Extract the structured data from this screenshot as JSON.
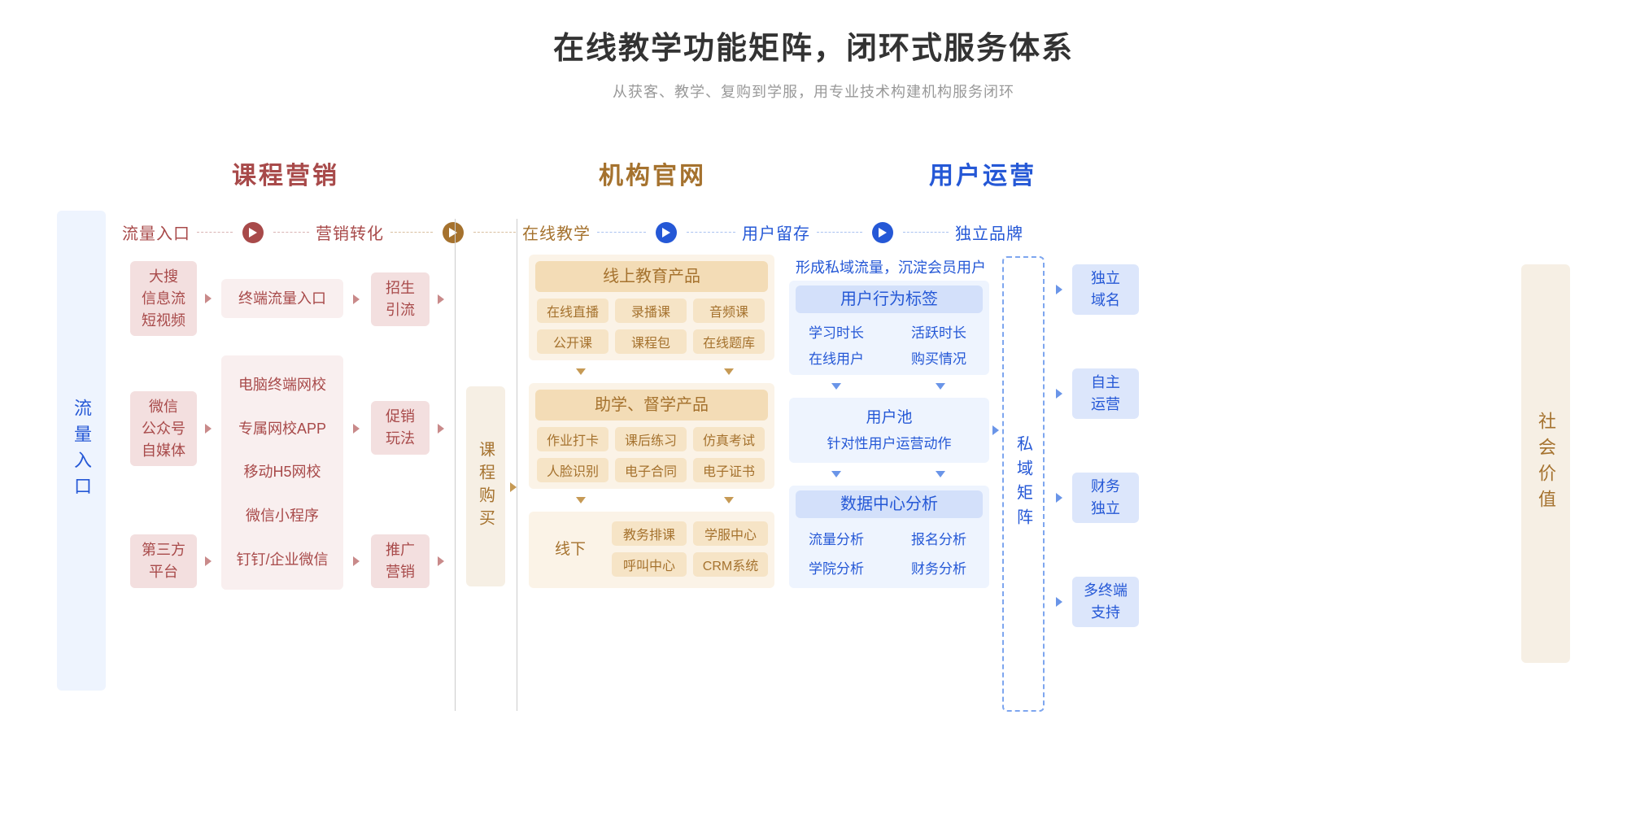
{
  "title": "在线教学功能矩阵，闭环式服务体系",
  "subtitle": "从获客、教学、复购到学服，用专业技术构建机构服务闭环",
  "colors": {
    "red": "#a84a4a",
    "brown": "#a5722e",
    "blue": "#2558d6",
    "red_bg": "#f9efef",
    "red_bg_dark": "#f3dfdf",
    "brown_bg": "#fbf3e7",
    "brown_bg_dark": "#f6e4c6",
    "brown_hdr": "#f3dcb6",
    "blue_bg": "#eef4fe",
    "blue_bg_dark": "#dce6fb",
    "blue_hdr": "#d3e0fa",
    "bg": "#ffffff"
  },
  "sections": {
    "marketing": "课程营销",
    "official": "机构官网",
    "operations": "用户运营"
  },
  "steps": {
    "traffic": "流量入口",
    "conversion": "营销转化",
    "teaching": "在线教学",
    "retention": "用户留存",
    "brand": "独立品牌"
  },
  "vbars": {
    "left": "流量入口",
    "midBrown": "课程购买",
    "midBlue": "私域矩阵",
    "right": "社会价值"
  },
  "red": {
    "sources": [
      "大搜\n信息流\n短视频",
      "微信\n公众号\n自媒体",
      "第三方\n平台"
    ],
    "terminals_single": "终端流量入口",
    "terminals_multi": [
      "电脑终端网校",
      "专属网校APP",
      "移动H5网校",
      "微信小程序",
      "钉钉/企业微信"
    ],
    "converts": [
      "招生\n引流",
      "促销\n玩法",
      "推广\n营销"
    ]
  },
  "brown": {
    "online_hdr": "线上教育产品",
    "online_items": [
      "在线直播",
      "录播课",
      "音频课",
      "公开课",
      "课程包",
      "在线题库"
    ],
    "assist_hdr": "助学、督学产品",
    "assist_items": [
      "作业打卡",
      "课后练习",
      "仿真考试",
      "人脸识别",
      "电子合同",
      "电子证书"
    ],
    "offline_hdr": "线下",
    "offline_items": [
      "教务排课",
      "学服中心",
      "呼叫中心",
      "CRM系统"
    ]
  },
  "blue": {
    "note": "形成私域流量，沉淀会员用户",
    "behavior_hdr": "用户行为标签",
    "behavior_items": [
      "学习时长",
      "活跃时长",
      "在线用户",
      "购买情况"
    ],
    "pool_hdr": "用户池",
    "pool_sub": "针对性用户运营动作",
    "analytics_hdr": "数据中心分析",
    "analytics_items": [
      "流量分析",
      "报名分析",
      "学院分析",
      "财务分析"
    ],
    "brand_items": [
      "独立\n域名",
      "自主\n运营",
      "财务\n独立",
      "多终端\n支持"
    ]
  }
}
